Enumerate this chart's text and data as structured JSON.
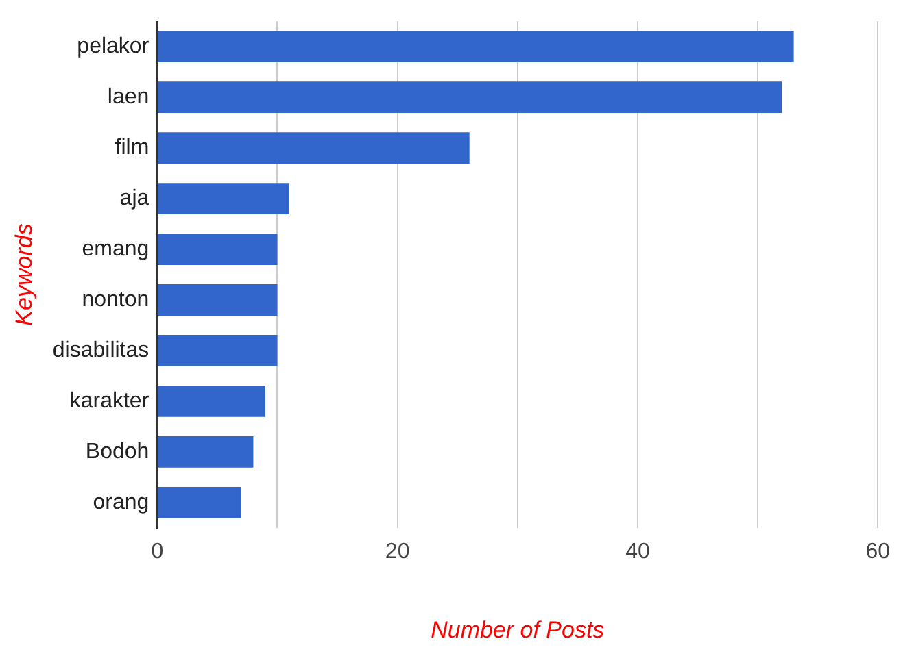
{
  "chart_data": {
    "type": "bar",
    "orientation": "horizontal",
    "xlabel": "Number of Posts",
    "ylabel": "Keywords",
    "categories": [
      "pelakor",
      "laen",
      "film",
      "aja",
      "emang",
      "nonton",
      "disabilitas",
      "karakter",
      "Bodoh",
      "orang"
    ],
    "values": [
      53,
      52,
      26,
      11,
      10,
      10,
      10,
      9,
      8,
      7
    ],
    "color": "#3366cc",
    "xlim": [
      0,
      60
    ],
    "xticks": [
      0,
      {
        "value": 10,
        "label": null
      },
      20,
      {
        "value": 30,
        "label": null
      },
      40,
      {
        "value": 50,
        "label": null
      },
      60
    ],
    "grid": "x",
    "legend": false
  }
}
